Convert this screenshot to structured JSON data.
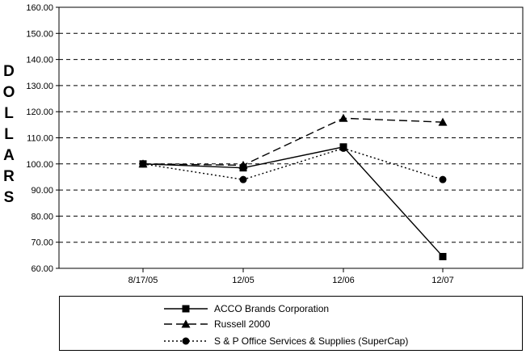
{
  "chart_data": {
    "type": "line",
    "title": "",
    "ylabel": "DOLLARS",
    "xlabel": "",
    "categories": [
      "8/17/05",
      "12/05",
      "12/06",
      "12/07"
    ],
    "ylim": [
      60,
      160
    ],
    "ytick_step": 10,
    "grid": "horizontal dashed",
    "legend_position": "bottom",
    "series": [
      {
        "name": "ACCO Brands Corporation",
        "values": [
          100.0,
          98.5,
          106.5,
          64.5
        ],
        "marker": "square",
        "line": "solid",
        "color": "#000000"
      },
      {
        "name": "Russell 2000",
        "values": [
          100.0,
          99.5,
          117.5,
          116.0
        ],
        "marker": "triangle",
        "line": "long-dash",
        "color": "#000000"
      },
      {
        "name": "S & P Office Services & Supplies (SuperCap)",
        "values": [
          100.0,
          94.0,
          106.0,
          94.0
        ],
        "marker": "circle",
        "line": "dotted",
        "color": "#000000"
      }
    ]
  }
}
